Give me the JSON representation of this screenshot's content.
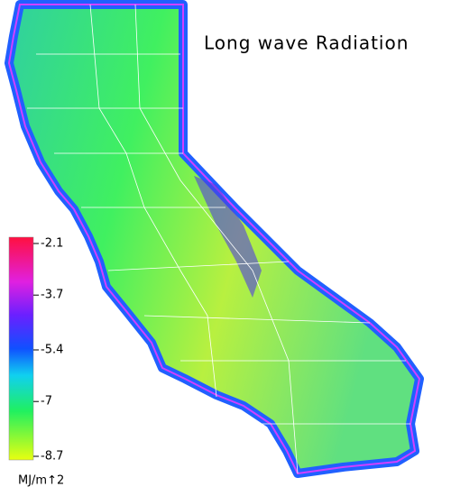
{
  "title": "Long wave Radiation",
  "legend": {
    "ticks": [
      -2.1,
      -3.7,
      -5.4,
      -7.0,
      -8.7
    ],
    "unit": "MJ/m↑2"
  }
}
